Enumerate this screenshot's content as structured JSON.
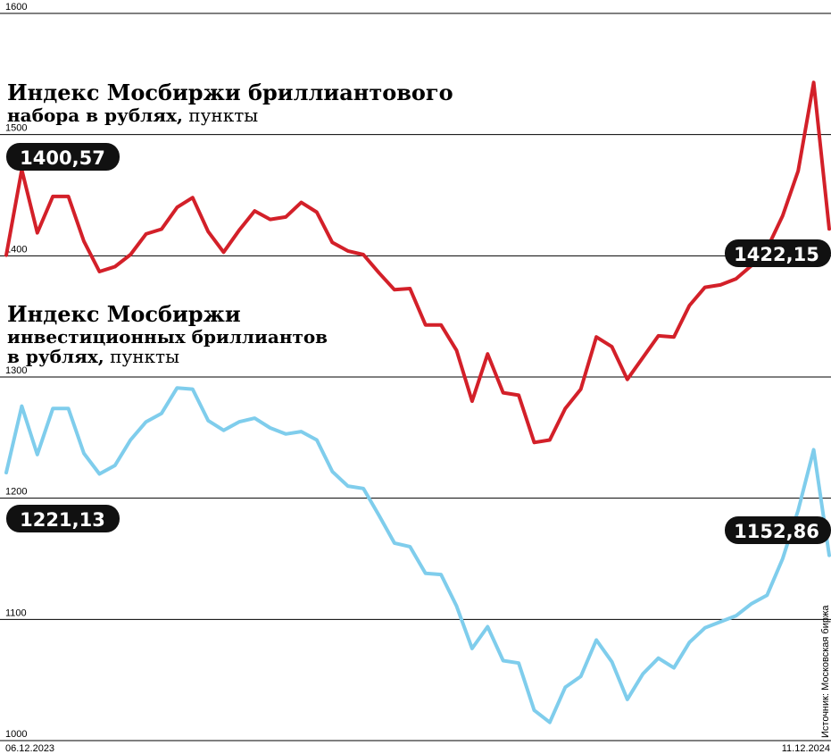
{
  "chart_data": {
    "type": "line",
    "x_start_label": "06.12.2023",
    "x_end_label": "11.12.2024",
    "ylim": [
      1000,
      1600
    ],
    "y_ticks": [
      "1000",
      "1100",
      "1200",
      "1300",
      "1400",
      "1500",
      "1600"
    ],
    "grid": true,
    "source": "Источник: Московская биржа",
    "series": [
      {
        "key": "brilliant",
        "title_line1": "Индекс Мосбиржи бриллиантового",
        "title_line2_bold": "набора в рублях,",
        "title_line2_rest": " пункты",
        "start_value_label": "1400,57",
        "end_value_label": "1422,15",
        "color": "#d32029",
        "values": [
          1400.57,
          1471,
          1419,
          1449,
          1449,
          1412,
          1387,
          1391,
          1401,
          1418,
          1422,
          1440,
          1448,
          1420,
          1403,
          1421,
          1437,
          1430,
          1432,
          1444,
          1436,
          1411,
          1404,
          1401,
          1386,
          1372,
          1373,
          1343,
          1343,
          1322,
          1280,
          1319,
          1287,
          1285,
          1246,
          1248,
          1274,
          1290,
          1333,
          1325,
          1298,
          1316,
          1334,
          1333,
          1359,
          1374,
          1376,
          1381,
          1392,
          1406,
          1433,
          1470,
          1543,
          1422.15
        ]
      },
      {
        "key": "investment",
        "title_line1": "Индекс Мосбиржи",
        "title_line2": "инвестиционных бриллиантов",
        "title_line3_bold": "в рублях,",
        "title_line3_rest": " пункты",
        "start_value_label": "1221,13",
        "end_value_label": "1152,86",
        "color": "#7fcdec",
        "values": [
          1221.13,
          1276,
          1236,
          1274,
          1274,
          1237,
          1220,
          1227,
          1248,
          1263,
          1270,
          1291,
          1290,
          1264,
          1256,
          1263,
          1266,
          1258,
          1253,
          1255,
          1248,
          1222,
          1210,
          1208,
          1186,
          1163,
          1160,
          1138,
          1137,
          1111,
          1076,
          1094,
          1066,
          1064,
          1025,
          1015,
          1044,
          1053,
          1083,
          1065,
          1034,
          1055,
          1068,
          1060,
          1081,
          1093,
          1098,
          1103,
          1113,
          1120,
          1150,
          1190,
          1240,
          1152.86
        ]
      }
    ]
  }
}
